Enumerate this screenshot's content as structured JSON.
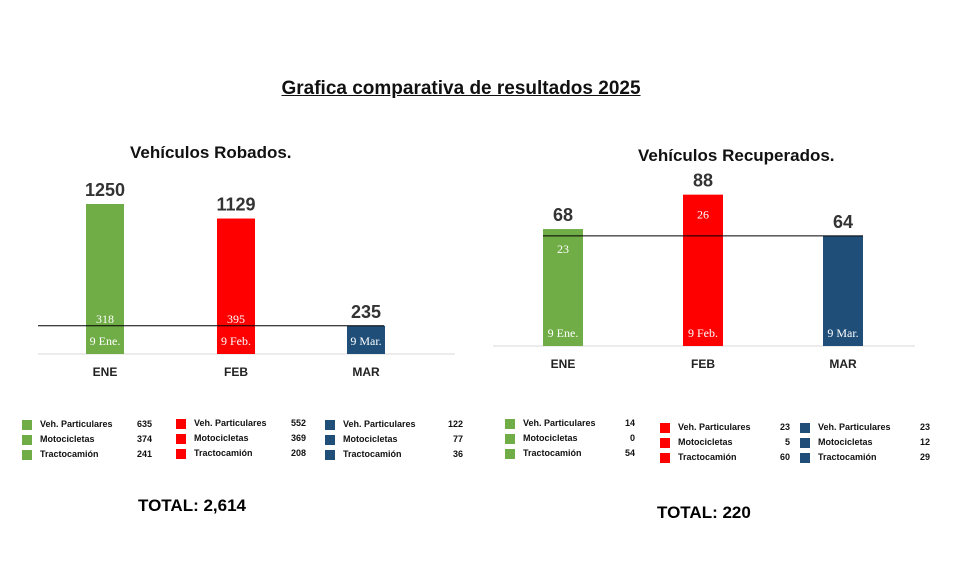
{
  "title": "Grafica comparativa de resultados 2025",
  "colors": {
    "ENE": "#70ad47",
    "FEB": "#ff0000",
    "MAR": "#1f4e79"
  },
  "chart_data": [
    {
      "type": "bar",
      "title": "Vehículos Robados.",
      "categories": [
        "ENE",
        "FEB",
        "MAR"
      ],
      "values": [
        1250,
        1129,
        235
      ],
      "inner_values": [
        "318",
        "395",
        ""
      ],
      "date_labels": [
        "9 Ene.",
        "9 Feb.",
        "9 Mar."
      ],
      "reference_line": 235,
      "legend": [
        [
          {
            "label": "Veh. Particulares",
            "value": 635
          },
          {
            "label": "Motocicletas",
            "value": 374
          },
          {
            "label": "Tractocamión",
            "value": 241
          }
        ],
        [
          {
            "label": "Veh. Particulares",
            "value": 552
          },
          {
            "label": "Motocicletas",
            "value": 369
          },
          {
            "label": "Tractocamión",
            "value": 208
          }
        ],
        [
          {
            "label": "Veh. Particulares",
            "value": 122
          },
          {
            "label": "Motocicletas",
            "value": 77
          },
          {
            "label": "Tractocamión",
            "value": 36
          }
        ]
      ],
      "total": "TOTAL: 2,614"
    },
    {
      "type": "bar",
      "title": "Vehículos Recuperados.",
      "categories": [
        "ENE",
        "FEB",
        "MAR"
      ],
      "values": [
        68,
        88,
        64
      ],
      "inner_values": [
        "23",
        "26",
        ""
      ],
      "date_labels": [
        "9 Ene.",
        "9 Feb.",
        "9 Mar."
      ],
      "reference_line": 64,
      "legend": [
        [
          {
            "label": "Veh. Particulares",
            "value": 14
          },
          {
            "label": "Motocicletas",
            "value": 0
          },
          {
            "label": "Tractocamión",
            "value": 54
          }
        ],
        [
          {
            "label": "Veh. Particulares",
            "value": 23
          },
          {
            "label": "Motocicletas",
            "value": 5
          },
          {
            "label": "Tractocamión",
            "value": 60
          }
        ],
        [
          {
            "label": "Veh. Particulares",
            "value": 23
          },
          {
            "label": "Motocicletas",
            "value": 12
          },
          {
            "label": "Tractocamión",
            "value": 29
          }
        ]
      ],
      "total": "TOTAL: 220"
    }
  ]
}
